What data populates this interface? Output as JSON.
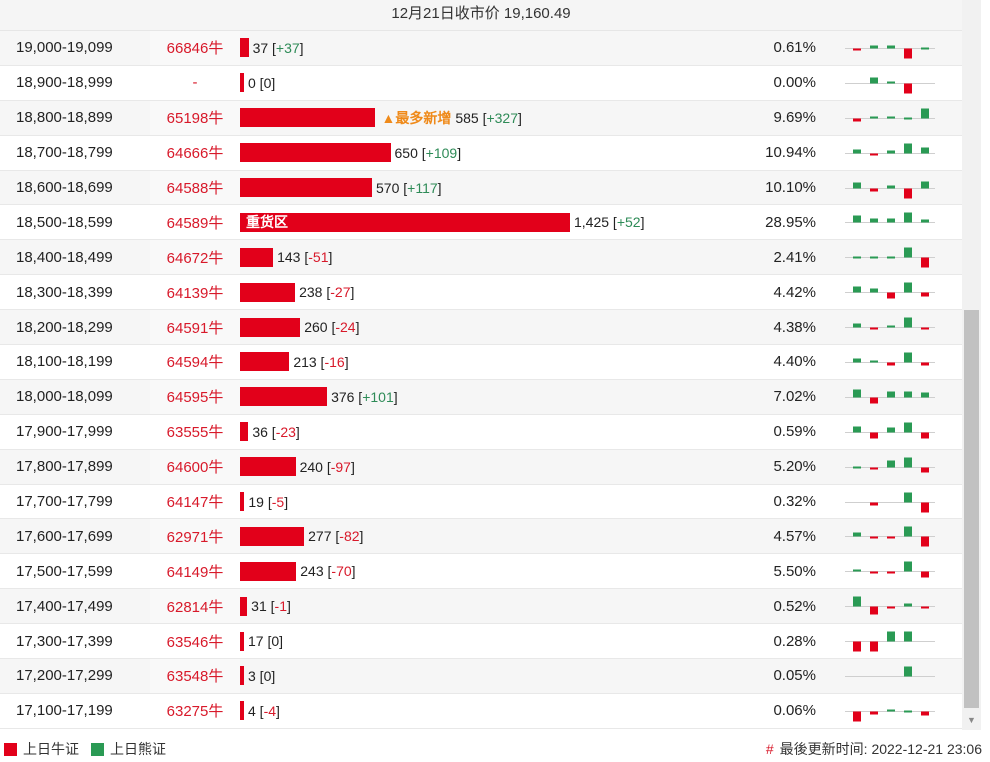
{
  "header": {
    "title": "12月21日收市价 19,160.49"
  },
  "colors": {
    "bull": "#e2001a",
    "bear": "#2a9a54",
    "accent": "#ef8a1a"
  },
  "rows": [
    {
      "range": "19,000-19,099",
      "code": "66846牛",
      "count": 37,
      "count_text": "37",
      "change": "+37",
      "pct": "0.61%",
      "spark": [
        -2,
        3,
        3,
        -10,
        1
      ]
    },
    {
      "range": "18,900-18,999",
      "code": "-",
      "count": 0,
      "count_text": "0",
      "change": "0",
      "pct": "0.00%",
      "spark": [
        0,
        6,
        2,
        -10,
        0
      ]
    },
    {
      "range": "18,800-18,899",
      "code": "65198牛",
      "count": 585,
      "count_text": "585",
      "change": "+327",
      "pct": "9.69%",
      "mark": "▲最多新增",
      "spark": [
        -3,
        2,
        2,
        1,
        10
      ]
    },
    {
      "range": "18,700-18,799",
      "code": "64666牛",
      "count": 650,
      "count_text": "650",
      "change": "+109",
      "pct": "10.94%",
      "spark": [
        4,
        -1,
        3,
        10,
        6
      ]
    },
    {
      "range": "18,600-18,699",
      "code": "64588牛",
      "count": 570,
      "count_text": "570",
      "change": "+117",
      "pct": "10.10%",
      "spark": [
        6,
        -3,
        3,
        -10,
        7
      ]
    },
    {
      "range": "18,500-18,599",
      "code": "64589牛",
      "count": 1425,
      "count_text": "1,425",
      "change": "+52",
      "pct": "28.95%",
      "bar_text": "重货区",
      "spark": [
        7,
        4,
        4,
        10,
        3
      ]
    },
    {
      "range": "18,400-18,499",
      "code": "64672牛",
      "count": 143,
      "count_text": "143",
      "change": "-51",
      "pct": "2.41%",
      "spark": [
        1,
        1,
        1,
        10,
        -10
      ]
    },
    {
      "range": "18,300-18,399",
      "code": "64139牛",
      "count": 238,
      "count_text": "238",
      "change": "-27",
      "pct": "4.42%",
      "spark": [
        6,
        4,
        -6,
        10,
        -4
      ]
    },
    {
      "range": "18,200-18,299",
      "code": "64591牛",
      "count": 260,
      "count_text": "260",
      "change": "-24",
      "pct": "4.38%",
      "spark": [
        4,
        -1,
        2,
        10,
        -2
      ]
    },
    {
      "range": "18,100-18,199",
      "code": "64594牛",
      "count": 213,
      "count_text": "213",
      "change": "-16",
      "pct": "4.40%",
      "spark": [
        4,
        2,
        -3,
        10,
        -3
      ]
    },
    {
      "range": "18,000-18,099",
      "code": "64595牛",
      "count": 376,
      "count_text": "376",
      "change": "+101",
      "pct": "7.02%",
      "spark": [
        8,
        -6,
        6,
        6,
        5
      ]
    },
    {
      "range": "17,900-17,999",
      "code": "63555牛",
      "count": 36,
      "count_text": "36",
      "change": "-23",
      "pct": "0.59%",
      "spark": [
        6,
        -6,
        5,
        10,
        -6
      ]
    },
    {
      "range": "17,800-17,899",
      "code": "64600牛",
      "count": 240,
      "count_text": "240",
      "change": "-97",
      "pct": "5.20%",
      "spark": [
        1,
        -1,
        7,
        10,
        -5
      ]
    },
    {
      "range": "17,700-17,799",
      "code": "64147牛",
      "count": 19,
      "count_text": "19",
      "change": "-5",
      "pct": "0.32%",
      "spark": [
        0,
        -3,
        0,
        10,
        -10
      ]
    },
    {
      "range": "17,600-17,699",
      "code": "62971牛",
      "count": 277,
      "count_text": "277",
      "change": "-82",
      "pct": "4.57%",
      "spark": [
        4,
        -2,
        -2,
        10,
        -10
      ]
    },
    {
      "range": "17,500-17,599",
      "code": "64149牛",
      "count": 243,
      "count_text": "243",
      "change": "-70",
      "pct": "5.50%",
      "spark": [
        2,
        -1,
        -1,
        10,
        -6
      ]
    },
    {
      "range": "17,400-17,499",
      "code": "62814牛",
      "count": 31,
      "count_text": "31",
      "change": "-1",
      "pct": "0.52%",
      "spark": [
        10,
        -8,
        -2,
        3,
        -2
      ]
    },
    {
      "range": "17,300-17,399",
      "code": "63546牛",
      "count": 17,
      "count_text": "17",
      "change": "0",
      "pct": "0.28%",
      "spark": [
        -10,
        -10,
        10,
        10,
        0
      ]
    },
    {
      "range": "17,200-17,299",
      "code": "63548牛",
      "count": 3,
      "count_text": "3",
      "change": "0",
      "pct": "0.05%",
      "spark": [
        0,
        0,
        0,
        10,
        0
      ]
    },
    {
      "range": "17,100-17,199",
      "code": "63275牛",
      "count": 4,
      "count_text": "4",
      "change": "-4",
      "pct": "0.06%",
      "spark": [
        -10,
        -3,
        2,
        1,
        -4
      ]
    }
  ],
  "footer": {
    "legend": [
      {
        "label": "上日牛证",
        "color": "#e2001a"
      },
      {
        "label": "上日熊证",
        "color": "#2a9a54"
      }
    ],
    "updated_hash": "#",
    "updated_label": "最後更新时间: 2022-12-21 23:06"
  }
}
